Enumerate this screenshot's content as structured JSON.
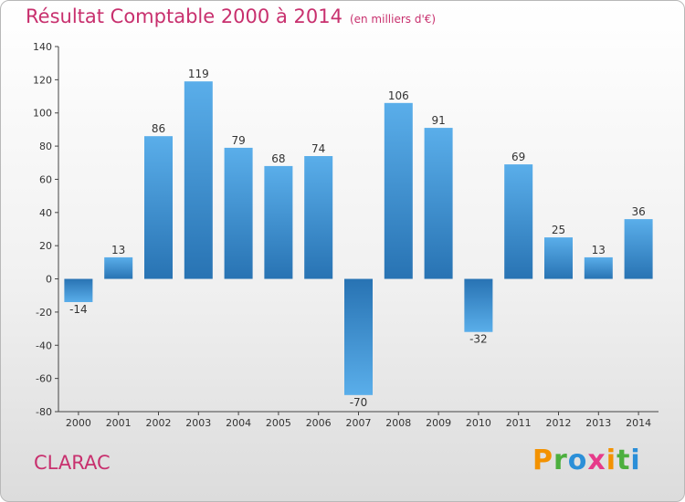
{
  "title": "Résultat Comptable 2000 à 2014",
  "subtitle": "(en milliers d'€)",
  "commune": "CLARAC",
  "logo": {
    "letters": [
      "P",
      "r",
      "o",
      "x",
      "i",
      "t",
      "i"
    ],
    "colors": [
      "#f39200",
      "#4caf3e",
      "#2b8fd8",
      "#e63b8a",
      "#f39200",
      "#4caf3e",
      "#2b8fd8"
    ]
  },
  "colors": {
    "title": "#c8306e",
    "bar_light": "#5aaeea",
    "bar_dark": "#2873b3"
  },
  "chart_data": {
    "type": "bar",
    "title": "Résultat Comptable 2000 à 2014",
    "xlabel": "",
    "ylabel": "en milliers d'€",
    "ylim": [
      -80,
      140
    ],
    "yticks": [
      140,
      120,
      100,
      80,
      60,
      40,
      20,
      0,
      -20,
      -40,
      -60,
      -80
    ],
    "categories": [
      "2000",
      "2001",
      "2002",
      "2003",
      "2004",
      "2005",
      "2006",
      "2007",
      "2008",
      "2009",
      "2010",
      "2011",
      "2012",
      "2013",
      "2014"
    ],
    "values": [
      -14,
      13,
      86,
      119,
      79,
      68,
      74,
      -70,
      106,
      91,
      -32,
      69,
      25,
      13,
      36
    ],
    "labels": [
      "-14",
      "13",
      "86",
      "119",
      "79",
      "68",
      "74",
      "-70",
      "106",
      "91",
      "-32",
      "69",
      "25",
      "13",
      "36"
    ],
    "grid": false
  }
}
